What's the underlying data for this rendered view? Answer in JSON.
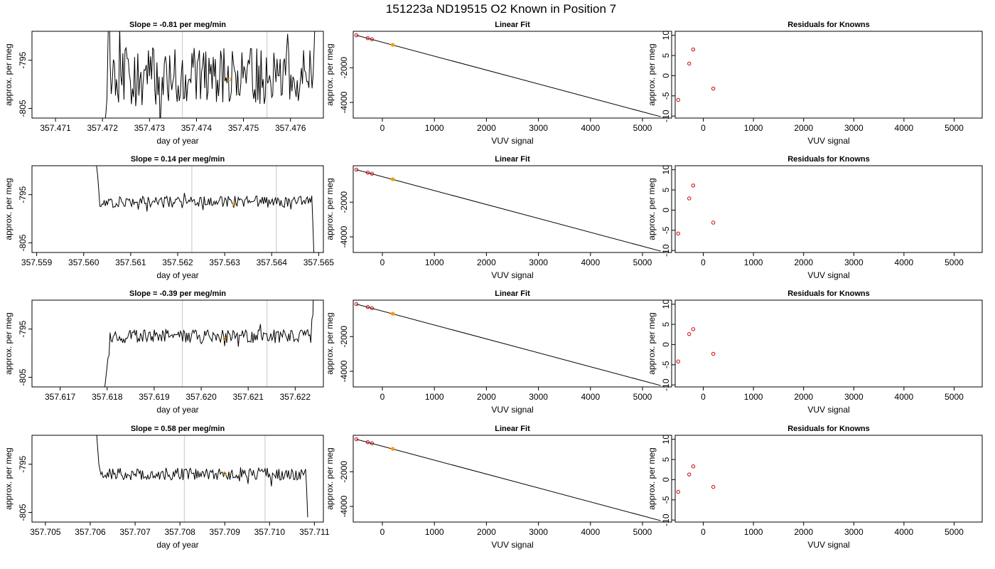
{
  "title": "151223a     ND19515   O2 Known in Position  7",
  "colors": {
    "trace": "#000000",
    "axis": "#000000",
    "gate": "#d3d3d3",
    "fit_point": "#cc0000",
    "highlight": "#ff9900"
  },
  "chart_data": [
    {
      "type": "line",
      "panel": "time-series",
      "row": 1,
      "title": "Slope =  -0.81  per meg/min",
      "xlabel": "day of year",
      "ylabel": "approx. per meg",
      "xlim": [
        357.4705,
        357.4767
      ],
      "ylim": [
        -807,
        -789
      ],
      "xticks": [
        357.471,
        357.472,
        357.473,
        357.474,
        357.475,
        357.476
      ],
      "yticks": [
        -805,
        -795
      ],
      "gates": [
        357.4737,
        357.4755
      ],
      "highlight": {
        "x": 357.4747,
        "y": -799
      },
      "trace": {
        "start": 357.47205,
        "end": 357.47655,
        "center": -798.3,
        "noise": 6.0,
        "n": 200,
        "head": [
          -808,
          -806,
          -803,
          -791,
          -780,
          -796,
          -802
        ],
        "tail": [
          -798,
          -792,
          -785,
          -778
        ]
      }
    },
    {
      "type": "scatter",
      "panel": "linear-fit",
      "row": 1,
      "title": "Linear Fit",
      "xlabel": "VUV signal",
      "ylabel": "approx. per meg",
      "xlim": [
        -560,
        5560
      ],
      "ylim": [
        -4900,
        100
      ],
      "xticks": [
        0,
        1000,
        2000,
        3000,
        4000,
        5000
      ],
      "yticks": [
        -4000,
        -2000
      ],
      "line": {
        "x": [
          -500,
          5350
        ],
        "y": [
          -130,
          -4820
        ]
      },
      "points": {
        "x": [
          -500,
          -280,
          -200,
          200
        ],
        "y": [
          -130,
          -298,
          -360,
          -680
        ]
      },
      "highlight_index": 3
    },
    {
      "type": "scatter",
      "panel": "residuals",
      "row": 1,
      "title": "Residuals for Knowns",
      "xlabel": "VUV signal",
      "ylabel": "approx. per meg",
      "xlim": [
        -560,
        5560
      ],
      "ylim": [
        -10.5,
        11
      ],
      "xticks": [
        0,
        1000,
        2000,
        3000,
        4000,
        5000
      ],
      "yticks": [
        -10,
        -5,
        0,
        5,
        10
      ],
      "points": {
        "x": [
          -500,
          -280,
          -200,
          200
        ],
        "y": [
          -6,
          3,
          6.5,
          -3.2
        ]
      }
    },
    {
      "type": "line",
      "panel": "time-series",
      "row": 2,
      "title": "Slope =  0.14  per meg/min",
      "xlabel": "day of year",
      "ylabel": "approx. per meg",
      "xlim": [
        357.5589,
        357.5651
      ],
      "ylim": [
        -807,
        -789
      ],
      "xticks": [
        357.559,
        357.56,
        357.561,
        357.562,
        357.563,
        357.564,
        357.565
      ],
      "yticks": [
        -805,
        -795
      ],
      "gates": [
        357.5623,
        357.5641
      ],
      "highlight": {
        "x": 357.5632,
        "y": -797
      },
      "trace": {
        "start": 357.56025,
        "end": 357.5649,
        "center": -796.5,
        "noise": 1.3,
        "n": 200,
        "head": [
          -784,
          -789,
          -791,
          -794
        ],
        "tail": [
          -801,
          -808
        ]
      }
    },
    {
      "type": "scatter",
      "panel": "linear-fit",
      "row": 2,
      "title": "Linear Fit",
      "xlabel": "VUV signal",
      "ylabel": "approx. per meg",
      "xlim": [
        -560,
        5560
      ],
      "ylim": [
        -4900,
        100
      ],
      "xticks": [
        0,
        1000,
        2000,
        3000,
        4000,
        5000
      ],
      "yticks": [
        -4000,
        -2000
      ],
      "line": {
        "x": [
          -500,
          5350
        ],
        "y": [
          -130,
          -4820
        ]
      },
      "points": {
        "x": [
          -500,
          -280,
          -200,
          200
        ],
        "y": [
          -130,
          -298,
          -360,
          -680
        ]
      },
      "highlight_index": 3
    },
    {
      "type": "scatter",
      "panel": "residuals",
      "row": 2,
      "title": "Residuals for Knowns",
      "xlabel": "VUV signal",
      "ylabel": "approx. per meg",
      "xlim": [
        -560,
        5560
      ],
      "ylim": [
        -10.5,
        11
      ],
      "xticks": [
        0,
        1000,
        2000,
        3000,
        4000,
        5000
      ],
      "yticks": [
        -10,
        -5,
        0,
        5,
        10
      ],
      "points": {
        "x": [
          -500,
          -280,
          -200,
          200
        ],
        "y": [
          -5.8,
          2.9,
          6.1,
          -3.1
        ]
      }
    },
    {
      "type": "line",
      "panel": "time-series",
      "row": 3,
      "title": "Slope =  -0.39  per meg/min",
      "xlabel": "day of year",
      "ylabel": "approx. per meg",
      "xlim": [
        357.6164,
        357.6226
      ],
      "ylim": [
        -807,
        -789
      ],
      "xticks": [
        357.617,
        357.618,
        357.619,
        357.62,
        357.621,
        357.622
      ],
      "yticks": [
        -805,
        -795
      ],
      "gates": [
        357.6196,
        357.6214
      ],
      "highlight": {
        "x": 357.6205,
        "y": -797
      },
      "trace": {
        "start": 357.61795,
        "end": 357.6224,
        "center": -796.5,
        "noise": 1.4,
        "n": 200,
        "head": [
          -807,
          -805,
          -803,
          -801,
          -800.5
        ],
        "tail": [
          -793,
          -792,
          -780
        ]
      }
    },
    {
      "type": "scatter",
      "panel": "linear-fit",
      "row": 3,
      "title": "Linear Fit",
      "xlabel": "VUV signal",
      "ylabel": "approx. per meg",
      "xlim": [
        -560,
        5560
      ],
      "ylim": [
        -4900,
        100
      ],
      "xticks": [
        0,
        1000,
        2000,
        3000,
        4000,
        5000
      ],
      "yticks": [
        -4000,
        -2000
      ],
      "line": {
        "x": [
          -500,
          5350
        ],
        "y": [
          -130,
          -4820
        ]
      },
      "points": {
        "x": [
          -500,
          -280,
          -200,
          200
        ],
        "y": [
          -130,
          -298,
          -360,
          -680
        ]
      },
      "highlight_index": 3
    },
    {
      "type": "scatter",
      "panel": "residuals",
      "row": 3,
      "title": "Residuals for Knowns",
      "xlabel": "VUV signal",
      "ylabel": "approx. per meg",
      "xlim": [
        -560,
        5560
      ],
      "ylim": [
        -10.5,
        11
      ],
      "xticks": [
        0,
        1000,
        2000,
        3000,
        4000,
        5000
      ],
      "yticks": [
        -10,
        -5,
        0,
        5,
        10
      ],
      "points": {
        "x": [
          -500,
          -280,
          -200,
          200
        ],
        "y": [
          -4.2,
          2.6,
          3.8,
          -2.3
        ]
      }
    },
    {
      "type": "line",
      "panel": "time-series",
      "row": 4,
      "title": "Slope =  0.58  per meg/min",
      "xlabel": "day of year",
      "ylabel": "approx. per meg",
      "xlim": [
        357.7047,
        357.7112
      ],
      "ylim": [
        -807,
        -789
      ],
      "xticks": [
        357.705,
        357.706,
        357.707,
        357.708,
        357.709,
        357.71,
        357.711
      ],
      "yticks": [
        -805,
        -795
      ],
      "gates": [
        357.7081,
        357.7099
      ],
      "highlight": {
        "x": 357.709,
        "y": -797
      },
      "trace": {
        "start": 357.70612,
        "end": 357.71085,
        "center": -797,
        "noise": 1.3,
        "n": 200,
        "head": [
          -784,
          -789,
          -792,
          -795
        ],
        "tail": [
          -796,
          -800,
          -806
        ]
      }
    },
    {
      "type": "scatter",
      "panel": "linear-fit",
      "row": 4,
      "title": "Linear Fit",
      "xlabel": "VUV signal",
      "ylabel": "approx. per meg",
      "xlim": [
        -560,
        5560
      ],
      "ylim": [
        -4900,
        100
      ],
      "xticks": [
        0,
        1000,
        2000,
        3000,
        4000,
        5000
      ],
      "yticks": [
        -4000,
        -2000
      ],
      "line": {
        "x": [
          -500,
          5350
        ],
        "y": [
          -130,
          -4820
        ]
      },
      "points": {
        "x": [
          -500,
          -280,
          -200,
          200
        ],
        "y": [
          -130,
          -298,
          -360,
          -680
        ]
      },
      "highlight_index": 3
    },
    {
      "type": "scatter",
      "panel": "residuals",
      "row": 4,
      "title": "Residuals for Knowns",
      "xlabel": "VUV signal",
      "ylabel": "approx. per meg",
      "xlim": [
        -560,
        5560
      ],
      "ylim": [
        -10.5,
        11
      ],
      "xticks": [
        0,
        1000,
        2000,
        3000,
        4000,
        5000
      ],
      "yticks": [
        -10,
        -5,
        0,
        5,
        10
      ],
      "points": {
        "x": [
          -500,
          -280,
          -200,
          200
        ],
        "y": [
          -3,
          1.3,
          3.3,
          -1.8
        ]
      }
    }
  ]
}
